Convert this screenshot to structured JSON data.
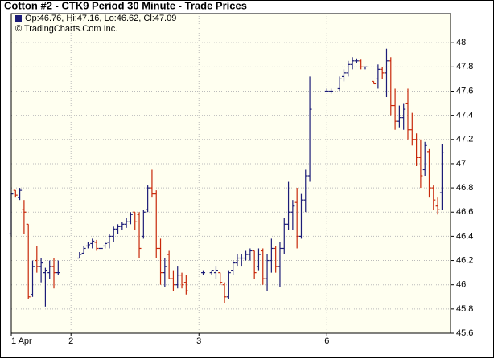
{
  "chart_data": {
    "type": "ohlc",
    "title": "Cotton #2 - CTK9 Period 30 Minute - Trade Prices",
    "legend_text": "Op:46.76, Hi:47.16, Lo:46.62, Cl:47.09",
    "copyright": "© TradingCharts.Com Inc.",
    "up_color": "#1c1c78",
    "down_color": "#c8280a",
    "x": [
      0,
      1,
      2,
      3,
      4,
      5,
      6,
      7,
      8,
      9,
      10,
      11,
      16,
      17,
      18,
      19,
      20,
      21,
      22,
      23,
      24,
      25,
      26,
      27,
      28,
      29,
      30,
      31,
      32,
      33,
      34,
      35,
      36,
      37,
      38,
      39,
      40,
      41,
      45,
      47,
      48,
      49,
      50,
      51,
      52,
      53,
      54,
      55,
      56,
      57,
      58,
      59,
      60,
      61,
      62,
      63,
      64,
      65,
      66,
      67,
      68,
      69,
      70,
      74,
      75,
      77,
      78,
      79,
      80,
      81,
      82,
      83,
      85,
      86,
      87,
      88,
      89,
      90,
      91,
      92,
      93,
      94,
      95,
      96,
      97,
      98,
      99,
      100,
      101
    ],
    "open": [
      46.42,
      46.78,
      46.72,
      46.62,
      46.5,
      45.92,
      46.2,
      46.15,
      46.1,
      46.1,
      46.15,
      46.1,
      46.22,
      46.26,
      46.32,
      46.34,
      46.35,
      46.3,
      46.32,
      46.35,
      46.4,
      46.46,
      46.48,
      46.5,
      46.52,
      46.6,
      46.58,
      46.4,
      46.62,
      46.8,
      46.75,
      46.3,
      46.1,
      46.25,
      46.05,
      46.0,
      46.08,
      46.02,
      46.1,
      46.1,
      46.1,
      46.1,
      46.0,
      45.9,
      46.12,
      46.18,
      46.22,
      46.22,
      46.25,
      46.28,
      46.15,
      46.28,
      46.05,
      46.2,
      46.3,
      46.15,
      46.3,
      46.5,
      46.6,
      46.68,
      46.4,
      46.7,
      46.9,
      47.6,
      47.6,
      47.62,
      47.72,
      47.75,
      47.82,
      47.85,
      47.85,
      47.8,
      47.68,
      47.7,
      47.78,
      47.75,
      47.85,
      47.48,
      47.35,
      47.38,
      47.5,
      47.28,
      47.2,
      47.05,
      46.95,
      47.1,
      46.8,
      46.65,
      46.76
    ],
    "high": [
      46.76,
      46.78,
      46.8,
      46.7,
      46.5,
      46.2,
      46.32,
      46.22,
      46.14,
      46.2,
      46.22,
      46.2,
      46.27,
      46.32,
      46.35,
      46.38,
      46.37,
      46.3,
      46.35,
      46.42,
      46.48,
      46.5,
      46.52,
      46.55,
      46.6,
      46.6,
      46.6,
      46.62,
      46.82,
      46.95,
      46.78,
      46.38,
      46.22,
      46.28,
      46.12,
      46.15,
      46.1,
      46.08,
      46.12,
      46.12,
      46.15,
      46.1,
      46.02,
      46.12,
      46.2,
      46.25,
      46.25,
      46.28,
      46.3,
      46.28,
      46.3,
      46.3,
      46.25,
      46.38,
      46.32,
      46.35,
      46.55,
      46.85,
      46.7,
      46.8,
      46.75,
      46.95,
      47.72,
      47.62,
      47.62,
      47.72,
      47.78,
      47.85,
      47.88,
      47.87,
      47.86,
      47.8,
      47.68,
      47.82,
      47.8,
      47.95,
      47.88,
      47.62,
      47.48,
      47.5,
      47.62,
      47.42,
      47.25,
      47.2,
      47.18,
      47.12,
      46.82,
      46.72,
      47.16
    ],
    "low": [
      46.4,
      46.72,
      46.7,
      46.42,
      45.88,
      45.9,
      46.1,
      46.02,
      45.82,
      46.05,
      45.97,
      46.08,
      46.22,
      46.25,
      46.3,
      46.3,
      46.28,
      46.3,
      46.3,
      46.3,
      46.35,
      46.42,
      46.45,
      46.47,
      46.5,
      46.45,
      46.22,
      46.38,
      46.6,
      46.72,
      46.22,
      46.0,
      45.98,
      46.05,
      45.95,
      45.97,
      45.97,
      45.92,
      46.08,
      46.08,
      46.05,
      46.0,
      45.85,
      45.88,
      46.08,
      46.15,
      46.15,
      46.2,
      46.2,
      46.05,
      46.12,
      46.0,
      45.95,
      46.1,
      46.1,
      45.98,
      46.25,
      46.45,
      46.45,
      46.3,
      46.38,
      46.6,
      46.85,
      47.6,
      47.58,
      47.6,
      47.68,
      47.72,
      47.78,
      47.83,
      47.78,
      47.78,
      47.66,
      47.62,
      47.7,
      47.55,
      47.4,
      47.28,
      47.3,
      47.28,
      47.2,
      47.15,
      46.98,
      46.8,
      46.9,
      46.72,
      46.62,
      46.58,
      46.62
    ],
    "close": [
      46.75,
      46.74,
      46.78,
      46.6,
      45.9,
      46.15,
      46.15,
      46.18,
      46.12,
      46.15,
      46.1,
      46.1,
      46.25,
      46.3,
      46.33,
      46.36,
      46.3,
      46.3,
      46.34,
      46.4,
      46.46,
      46.48,
      46.5,
      46.52,
      46.58,
      46.52,
      46.3,
      46.6,
      46.8,
      46.75,
      46.3,
      46.1,
      46.15,
      46.05,
      46.0,
      46.08,
      46.0,
      45.95,
      46.1,
      46.12,
      46.12,
      46.02,
      45.9,
      46.1,
      46.18,
      46.22,
      46.22,
      46.25,
      46.28,
      46.1,
      46.25,
      46.05,
      46.2,
      46.3,
      46.15,
      46.3,
      46.5,
      46.6,
      46.65,
      46.4,
      46.7,
      46.9,
      47.45,
      47.6,
      47.6,
      47.7,
      47.75,
      47.82,
      47.85,
      47.85,
      47.8,
      47.8,
      47.66,
      47.78,
      47.75,
      47.85,
      47.48,
      47.35,
      47.38,
      47.45,
      47.28,
      47.2,
      47.05,
      46.9,
      47.15,
      46.8,
      46.7,
      46.62,
      47.09
    ],
    "xlim": [
      0,
      103
    ],
    "xticks": [
      {
        "value": 0,
        "label": "1 Apr"
      },
      {
        "value": 14,
        "label": "2"
      },
      {
        "value": 44,
        "label": "3"
      },
      {
        "value": 74,
        "label": "6"
      }
    ],
    "ylim": [
      45.6,
      48.24
    ],
    "yticks": [
      45.6,
      45.8,
      46,
      46.2,
      46.4,
      46.6,
      46.8,
      47,
      47.2,
      47.4,
      47.6,
      47.8,
      48
    ],
    "grid": true
  }
}
